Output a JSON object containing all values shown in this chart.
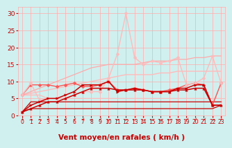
{
  "background_color": "#cff0ee",
  "grid_color": "#ffaaaa",
  "xlabel": "Vent moyen/en rafales ( km/h )",
  "xlabel_color": "#cc0000",
  "xlabel_fontsize": 7.5,
  "xtick_color": "#cc0000",
  "ytick_color": "#cc0000",
  "ytick_fontsize": 6.5,
  "xtick_fontsize": 5.5,
  "xlim": [
    -0.5,
    23.5
  ],
  "ylim": [
    0,
    32
  ],
  "yticks": [
    0,
    5,
    10,
    15,
    20,
    25,
    30
  ],
  "xticks": [
    0,
    1,
    2,
    3,
    4,
    5,
    6,
    7,
    8,
    9,
    10,
    11,
    12,
    13,
    14,
    15,
    16,
    17,
    18,
    19,
    20,
    21,
    22,
    23
  ],
  "series": [
    {
      "comment": "flat near-zero line, dark red, no marker",
      "x": [
        0,
        1,
        2,
        3,
        4,
        5,
        6,
        7,
        8,
        9,
        10,
        11,
        12,
        13,
        14,
        15,
        16,
        17,
        18,
        19,
        20,
        21,
        22,
        23
      ],
      "y": [
        1,
        2,
        2,
        2,
        2,
        2,
        2,
        2,
        2,
        2,
        2,
        2,
        2,
        2,
        2,
        2,
        2,
        2,
        2,
        2,
        2,
        2,
        2,
        3
      ],
      "color": "#cc0000",
      "lw": 0.9,
      "marker": null,
      "zorder": 3
    },
    {
      "comment": "second flat line slightly higher, dark red, no marker",
      "x": [
        0,
        1,
        2,
        3,
        4,
        5,
        6,
        7,
        8,
        9,
        10,
        11,
        12,
        13,
        14,
        15,
        16,
        17,
        18,
        19,
        20,
        21,
        22,
        23
      ],
      "y": [
        1,
        4,
        4,
        4,
        4,
        4,
        4,
        4,
        4,
        4,
        4,
        4,
        4,
        4,
        4,
        4,
        4,
        4,
        4,
        4,
        4,
        4,
        4,
        4
      ],
      "color": "#cc0000",
      "lw": 0.9,
      "marker": null,
      "zorder": 3
    },
    {
      "comment": "slightly rising line, medium red, no marker - goes from ~6 to ~13",
      "x": [
        0,
        1,
        2,
        3,
        4,
        5,
        6,
        7,
        8,
        9,
        10,
        11,
        12,
        13,
        14,
        15,
        16,
        17,
        18,
        19,
        20,
        21,
        22,
        23
      ],
      "y": [
        6,
        6.5,
        7,
        7.5,
        8,
        8.5,
        9,
        9.5,
        10,
        10.5,
        11,
        11.5,
        12,
        12,
        12,
        12,
        12.5,
        12.5,
        13,
        13,
        13,
        13,
        13,
        13
      ],
      "color": "#ffbbbb",
      "lw": 1.0,
      "marker": null,
      "zorder": 2
    },
    {
      "comment": "light pink line starting at 6, slowly rising to ~13",
      "x": [
        0,
        1,
        2,
        3,
        4,
        5,
        6,
        7,
        8,
        9,
        10,
        11,
        12,
        13,
        14,
        15,
        16,
        17,
        18,
        19,
        20,
        21,
        22,
        23
      ],
      "y": [
        6,
        6,
        6,
        5,
        5,
        5,
        5,
        5,
        5,
        5,
        5,
        5,
        5,
        5,
        5,
        5,
        5,
        5,
        5,
        5,
        5,
        5,
        5,
        5
      ],
      "color": "#ffbbbb",
      "lw": 0.9,
      "marker": null,
      "zorder": 2
    },
    {
      "comment": "dark red with triangle markers - rises steeply then levels off around 7-8",
      "x": [
        0,
        1,
        2,
        3,
        4,
        5,
        6,
        7,
        8,
        9,
        10,
        11,
        12,
        13,
        14,
        15,
        16,
        17,
        18,
        19,
        20,
        21,
        22,
        23
      ],
      "y": [
        1,
        2,
        3,
        4,
        4,
        5,
        6,
        7,
        8,
        8,
        8,
        7.5,
        7.5,
        7.5,
        7.5,
        7,
        7,
        7,
        7.5,
        7.5,
        8,
        8,
        3,
        3
      ],
      "color": "#cc0000",
      "lw": 1.1,
      "marker": "^",
      "markersize": 2.5,
      "zorder": 5
    },
    {
      "comment": "medium red with right-arrow markers, levels around 7-9",
      "x": [
        0,
        1,
        2,
        3,
        4,
        5,
        6,
        7,
        8,
        9,
        10,
        11,
        12,
        13,
        14,
        15,
        16,
        17,
        18,
        19,
        20,
        21,
        22,
        23
      ],
      "y": [
        1,
        3,
        4,
        5,
        5,
        6,
        7,
        9,
        9,
        9,
        10,
        7,
        7.5,
        8,
        7.5,
        7,
        7,
        7,
        8,
        8,
        9,
        9,
        3,
        3
      ],
      "color": "#cc0000",
      "lw": 1.1,
      "marker": ">",
      "markersize": 2.5,
      "zorder": 5
    },
    {
      "comment": "medium pink with diamond markers - rises to peak around 16-17 then dips",
      "x": [
        0,
        1,
        2,
        3,
        4,
        5,
        6,
        7,
        8,
        9,
        10,
        11,
        12,
        13,
        14,
        15,
        16,
        17,
        18,
        19,
        20,
        21,
        22,
        23
      ],
      "y": [
        6,
        9,
        9,
        9,
        8.5,
        9,
        9.5,
        8.5,
        8.5,
        9,
        10,
        7.5,
        7.5,
        8,
        7.5,
        7,
        7,
        7.5,
        8,
        9,
        9.5,
        9,
        3,
        9.5
      ],
      "color": "#ff5555",
      "lw": 1.0,
      "marker": "D",
      "markersize": 2.5,
      "zorder": 4
    },
    {
      "comment": "light pink with diamond markers - big spike at x=12 to 30",
      "x": [
        0,
        1,
        2,
        3,
        4,
        5,
        6,
        7,
        8,
        9,
        10,
        11,
        12,
        13,
        14,
        15,
        16,
        17,
        18,
        19,
        20,
        21,
        22,
        23
      ],
      "y": [
        6,
        9.5,
        4.5,
        5,
        5,
        5,
        6,
        7,
        7,
        7,
        11,
        18,
        30,
        17,
        15,
        16,
        15.5,
        16,
        17,
        9,
        9.5,
        11,
        17.5,
        9.5
      ],
      "color": "#ffbbbb",
      "lw": 1.0,
      "marker": "D",
      "markersize": 2.5,
      "zorder": 4
    },
    {
      "comment": "lighter pink no marker, rising from 6 to ~17 at right edge",
      "x": [
        0,
        1,
        2,
        3,
        4,
        5,
        6,
        7,
        8,
        9,
        10,
        11,
        12,
        13,
        14,
        15,
        16,
        17,
        18,
        19,
        20,
        21,
        22,
        23
      ],
      "y": [
        6,
        7,
        8,
        9,
        10,
        11,
        12,
        13,
        14,
        14.5,
        15,
        15,
        15,
        15,
        15.5,
        16,
        16,
        16,
        16.5,
        16.5,
        17,
        17,
        17.5,
        17.5
      ],
      "color": "#ffaaaa",
      "lw": 0.9,
      "marker": null,
      "zorder": 2
    }
  ],
  "wind_arrows": [
    "↓",
    "→",
    "→",
    "↙",
    "→",
    "↙",
    "↙",
    "↙",
    "←",
    "↙",
    "←",
    "←",
    "←",
    "←",
    "←",
    "←",
    "←",
    "←",
    "←",
    "↙",
    "↙",
    "↙",
    "→",
    "↓"
  ],
  "arrow_color": "#cc0000",
  "arrow_fontsize": 4.5
}
